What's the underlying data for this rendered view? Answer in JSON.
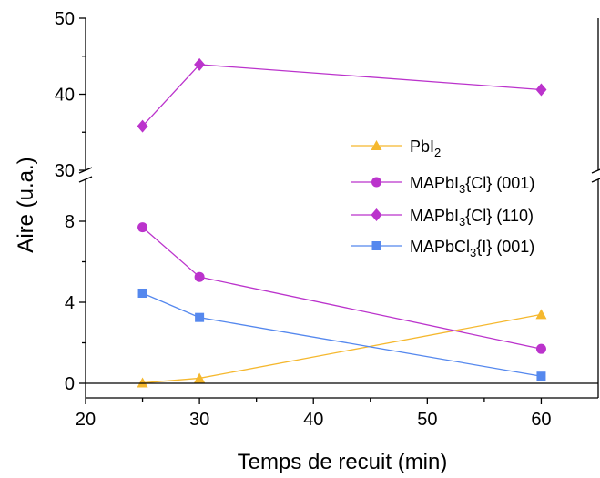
{
  "chart_data": {
    "type": "line",
    "xlabel": "Temps de recuit (min)",
    "ylabel": "Aire (u.a.)",
    "xlim": [
      20,
      65
    ],
    "xticks": [
      "20",
      "30",
      "40",
      "50",
      "60"
    ],
    "y_axis_break": true,
    "ylim_lower": [
      -1,
      10
    ],
    "ylim_upper": [
      30,
      50
    ],
    "yticks_lower": [
      "0",
      "4",
      "8"
    ],
    "yticks_upper": [
      "30",
      "40",
      "50"
    ],
    "zero_line": true,
    "legend_position": "center-right",
    "series": [
      {
        "name": "PbI2",
        "label_base": "PbI",
        "label_sub": "2",
        "label_tail": "",
        "color": "#f5b82e",
        "marker": "triangle",
        "x": [
          25,
          30,
          60
        ],
        "y": [
          0.02,
          0.25,
          3.4
        ]
      },
      {
        "name": "MAPbI3{Cl} (001)",
        "label_base": "MAPbI",
        "label_sub": "3",
        "label_tail": "{Cl} (001)",
        "color": "#bb33cc",
        "marker": "circle",
        "x": [
          25,
          30,
          60
        ],
        "y": [
          7.7,
          5.25,
          1.7
        ]
      },
      {
        "name": "MAPbI3{Cl} (110)",
        "label_base": "MAPbI",
        "label_sub": "3",
        "label_tail": "{Cl} (110)",
        "color": "#bb33cc",
        "marker": "diamond",
        "x": [
          25,
          30,
          60
        ],
        "y": [
          35.8,
          43.9,
          40.6
        ]
      },
      {
        "name": "MAPbCl3{I} (001)",
        "label_base": "MAPbCl",
        "label_sub": "3",
        "label_tail": "{I} (001)",
        "color": "#5588ee",
        "marker": "square",
        "x": [
          25,
          30,
          60
        ],
        "y": [
          4.45,
          3.25,
          0.35
        ]
      }
    ]
  }
}
